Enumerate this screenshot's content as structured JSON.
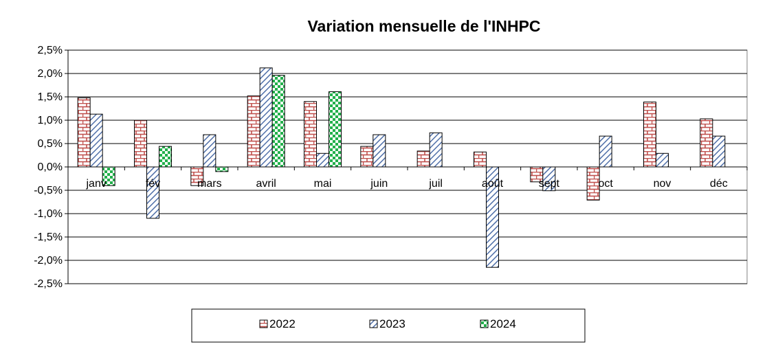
{
  "chart_data": {
    "type": "bar",
    "title": "Variation mensuelle de l'INHPC",
    "xlabel": "",
    "ylabel": "",
    "categories": [
      "janv",
      "fév",
      "mars",
      "avril",
      "mai",
      "juin",
      "juil",
      "août",
      "sept",
      "oct",
      "nov",
      "déc"
    ],
    "series": [
      {
        "name": "2022",
        "values": [
          1.48,
          1.0,
          -0.4,
          1.52,
          1.4,
          0.44,
          0.34,
          0.32,
          -0.32,
          -0.71,
          1.39,
          1.03
        ],
        "color": "#c0504d",
        "pattern": "brick"
      },
      {
        "name": "2023",
        "values": [
          1.13,
          -1.1,
          0.69,
          2.12,
          0.29,
          0.69,
          0.73,
          -2.15,
          -0.51,
          0.66,
          0.29,
          0.66
        ],
        "color": "#4f6fa8",
        "pattern": "diagonal"
      },
      {
        "name": "2024",
        "values": [
          -0.4,
          0.44,
          -0.1,
          1.96,
          1.61,
          null,
          null,
          null,
          null,
          null,
          null,
          null
        ],
        "color": "#22b04b",
        "pattern": "checker"
      }
    ],
    "ylim": [
      -2.5,
      2.5
    ],
    "ytick_step": 0.5,
    "y_tick_labels": [
      "2,5%",
      "2,0%",
      "1,5%",
      "1,0%",
      "0,5%",
      "0,0%",
      "-0,5%",
      "-1,0%",
      "-1,5%",
      "-2,0%",
      "-2,5%"
    ],
    "grid": true,
    "legend_position": "bottom"
  }
}
